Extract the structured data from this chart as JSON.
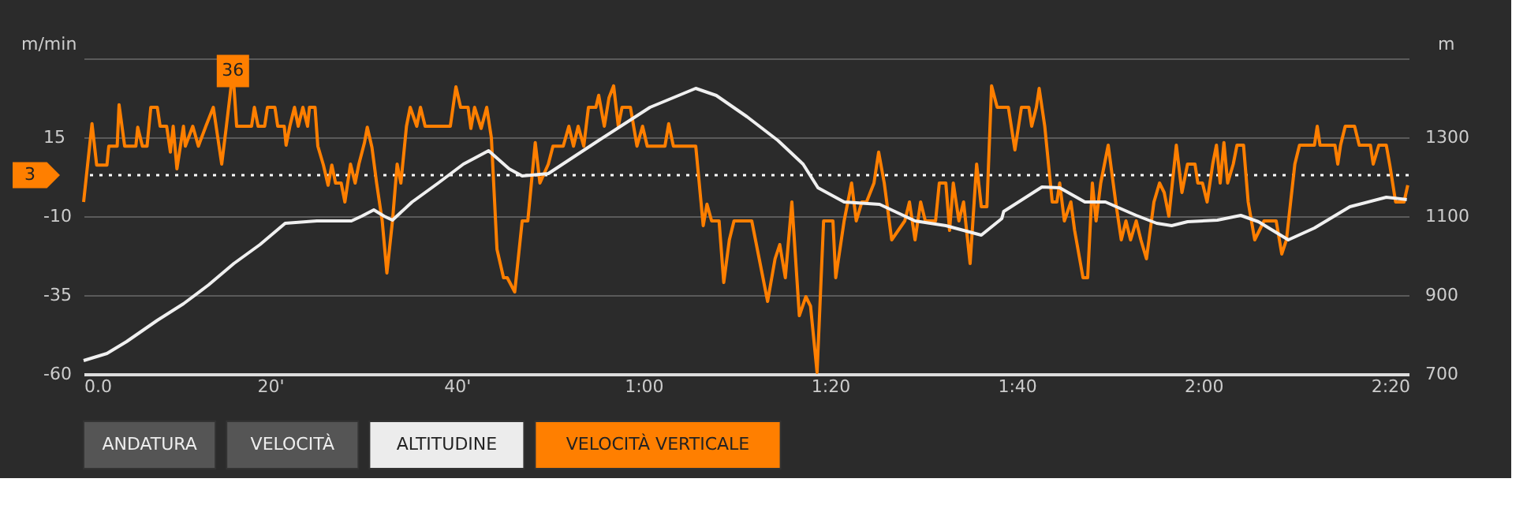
{
  "chart_data": {
    "type": "line",
    "ylabel": "m/min",
    "y2label": "m",
    "xlim": [
      0,
      142
    ],
    "xticks": [
      {
        "value": 0,
        "label": "0.0"
      },
      {
        "value": 20,
        "label": "20'"
      },
      {
        "value": 40,
        "label": "40'"
      },
      {
        "value": 60,
        "label": "1:00"
      },
      {
        "value": 80,
        "label": "1:20"
      },
      {
        "value": 100,
        "label": "1:40"
      },
      {
        "value": 120,
        "label": "2:00"
      },
      {
        "value": 140,
        "label": "2:20"
      }
    ],
    "ylim": [
      -60,
      40
    ],
    "yticks": [
      -60,
      -35,
      -10,
      15,
      {
        "value": 40,
        "label": null
      }
    ],
    "y2lim": [
      700,
      1500
    ],
    "y2ticks": [
      700,
      900,
      1100,
      1300
    ],
    "grid": "y",
    "series": [
      {
        "color": "#ff7f00",
        "x": [
          0,
          0.9,
          1.4,
          2.5,
          2.7,
          3.6,
          3.8,
          4.4,
          5.6,
          5.8,
          6.3,
          6.8,
          7.2,
          7.9,
          8.2,
          8.9,
          9.3,
          9.6,
          10.0,
          10.7,
          10.9,
          11.7,
          12.3,
          13.1,
          13.9,
          14.8,
          15.3,
          16.0,
          16.4,
          18.0,
          18.3,
          18.7,
          19.4,
          19.7,
          20.5,
          20.8,
          21.5,
          21.7,
          22.1,
          22.6,
          23.0,
          23.5,
          24.0,
          24.2,
          24.8,
          25.1,
          25.7,
          26.2,
          26.6,
          27.0,
          27.6,
          28.0,
          28.6,
          29.1,
          29.5,
          30.1,
          30.4,
          30.9,
          31.4,
          32.0,
          32.5,
          33.1,
          33.6,
          34.0,
          34.6,
          35.0,
          35.7,
          36.1,
          36.6,
          39.3,
          39.9,
          40.4,
          41.2,
          41.5,
          41.9,
          42.6,
          43.2,
          43.7,
          44.3,
          45.0,
          45.4,
          46.2,
          47.0,
          47.6,
          48.4,
          48.9,
          49.8,
          50.3,
          51.4,
          52.0,
          52.5,
          53.0,
          53.6,
          54.1,
          54.9,
          55.2,
          55.8,
          56.3,
          56.8,
          57.3,
          57.7,
          58.6,
          59.3,
          59.9,
          60.4,
          62.3,
          62.7,
          63.2,
          65.6,
          66.4,
          66.8,
          67.3,
          68.1,
          68.6,
          69.2,
          69.7,
          71.6,
          72.4,
          73.3,
          74.1,
          74.6,
          75.2,
          75.9,
          76.7,
          77.4,
          77.9,
          78.6,
          79.3,
          80.3,
          80.6,
          81.5,
          82.3,
          82.8,
          83.4,
          83.9,
          84.7,
          85.2,
          85.8,
          86.6,
          88.0,
          88.5,
          89.1,
          89.7,
          90.2,
          91.3,
          91.7,
          92.4,
          92.8,
          93.2,
          93.8,
          94.3,
          95.0,
          95.7,
          96.2,
          96.8,
          97.3,
          97.9,
          99.1,
          99.8,
          100.5,
          101.3,
          101.6,
          102.1,
          102.4,
          103.0,
          103.8,
          104.3,
          104.6,
          105.1,
          105.8,
          106.2,
          107.1,
          107.6,
          108.1,
          108.5,
          109.0,
          109.8,
          110.6,
          111.2,
          111.7,
          112.2,
          112.8,
          113.3,
          113.9,
          114.7,
          115.3,
          115.8,
          116.3,
          117.1,
          117.7,
          118.3,
          119.1,
          119.4,
          119.9,
          120.4,
          121.0,
          121.4,
          121.8,
          122.2,
          122.6,
          123.2,
          123.6,
          124.3,
          124.8,
          125.5,
          126.5,
          127.8,
          128.4,
          128.9,
          129.8,
          130.3,
          131.9,
          132.2,
          132.5,
          134.1,
          134.4,
          134.7,
          135.2,
          135.7,
          136.2,
          136.7,
          137.9,
          138.2,
          138.8,
          139.6,
          140.0,
          140.6,
          141.5,
          141.9
        ],
        "values": [
          -5.5,
          19.3,
          6.2,
          6.2,
          12.2,
          12.2,
          25.3,
          12.2,
          12.2,
          18.2,
          12.2,
          12.2,
          24.5,
          24.5,
          18.5,
          18.5,
          10.3,
          18.5,
          5.0,
          18.5,
          12.2,
          18.5,
          12.2,
          18.5,
          24.5,
          6.5,
          18.5,
          36,
          18.5,
          18.5,
          24.5,
          18.5,
          18.5,
          24.5,
          24.5,
          18.5,
          18.5,
          12.5,
          18.5,
          24.5,
          18.5,
          24.5,
          18.5,
          24.5,
          24.5,
          12.2,
          6.2,
          -0.2,
          6.2,
          0.5,
          0.5,
          -5.5,
          6.5,
          0.5,
          6.5,
          13.3,
          18.2,
          11.8,
          0.5,
          -11.5,
          -28,
          -11.5,
          6.5,
          0.5,
          18.5,
          24.5,
          18.5,
          24.5,
          18.5,
          18.5,
          31,
          24.5,
          24.5,
          17.8,
          24.5,
          17.8,
          24.5,
          14.8,
          -20.5,
          -29.5,
          -29.5,
          -34,
          -11.5,
          -11.5,
          13.3,
          0.5,
          6.5,
          12.2,
          12.2,
          18.5,
          12.2,
          18.5,
          12.2,
          24.5,
          24.5,
          28.3,
          18.5,
          27.5,
          31.3,
          18.5,
          24.5,
          24.5,
          12.2,
          18.5,
          12.2,
          12.2,
          19.3,
          12.2,
          12.2,
          -13,
          -6.2,
          -11.5,
          -11.5,
          -31,
          -17.5,
          -11.5,
          -11.5,
          -23.5,
          -37,
          -23.5,
          -19,
          -29.5,
          -5.5,
          -41.5,
          -35.5,
          -38.5,
          -59.5,
          -11.5,
          -11.5,
          -29.5,
          -11.5,
          0.5,
          -11.5,
          -5.5,
          -5.5,
          0.5,
          10.3,
          0.5,
          -17.5,
          -11.5,
          -5.5,
          -17.5,
          -5.5,
          -11.5,
          -11.5,
          0.5,
          0.5,
          -14.5,
          0.5,
          -11.5,
          -5.5,
          -25,
          6.5,
          -7,
          -7,
          31.3,
          24.5,
          24.5,
          11,
          24.5,
          24.5,
          18.5,
          24.5,
          30.5,
          18.5,
          -5.5,
          -5.5,
          0.5,
          -11.5,
          -5.5,
          -14.5,
          -29.5,
          -29.5,
          0.5,
          -11.5,
          0.5,
          12.5,
          -5.5,
          -17.5,
          -11.5,
          -17.5,
          -11.5,
          -17.5,
          -23.5,
          -5.5,
          0.5,
          -2.5,
          -10,
          12.5,
          -2.5,
          6.5,
          6.5,
          0.5,
          0.5,
          -5.5,
          6.5,
          12.5,
          0.5,
          13.3,
          0.5,
          6.5,
          12.5,
          12.5,
          -5.5,
          -17.5,
          -11.5,
          -11.5,
          -22,
          -17.5,
          6.5,
          12.5,
          12.5,
          18.5,
          12.5,
          12.5,
          6.5,
          12.5,
          18.5,
          18.5,
          18.5,
          12.5,
          12.5,
          6.5,
          12.5,
          12.5,
          5.8,
          -5.5,
          -5.5,
          -0.2
        ]
      },
      {
        "color": "#f0f0f0",
        "axis": "y2",
        "x": [
          0,
          2.5,
          4.6,
          7.9,
          10.7,
          13.4,
          16.1,
          18.9,
          21.6,
          25.0,
          26.5,
          28.7,
          29.8,
          31.1,
          32.2,
          33.1,
          35.2,
          38.0,
          40.7,
          43.4,
          45.6,
          47.0,
          49.8,
          55.2,
          60.7,
          65.6,
          67.8,
          71.1,
          74.4,
          77.1,
          78.7,
          81.5,
          85.3,
          89.1,
          92.4,
          96.2,
          98.4,
          98.6,
          102.7,
          104.6,
          107.3,
          109.5,
          112.8,
          115.0,
          116.6,
          118.3,
          121.5,
          124.0,
          125.9,
          129.1,
          131.9,
          135.7,
          139.6,
          141.8
        ],
        "values": [
          734,
          752,
          782,
          836,
          878,
          926,
          980,
          1028,
          1082,
          1088,
          1088,
          1088,
          1100,
          1116,
          1100,
          1090,
          1136,
          1184,
          1232,
          1266,
          1220,
          1202,
          1208,
          1292,
          1376,
          1424,
          1406,
          1352,
          1292,
          1232,
          1172,
          1136,
          1130,
          1088,
          1076,
          1052,
          1094,
          1112,
          1174,
          1172,
          1136,
          1136,
          1102,
          1082,
          1076,
          1086,
          1090,
          1102,
          1086,
          1040,
          1070,
          1124,
          1148,
          1142
        ]
      }
    ],
    "ref_lines": [
      {
        "axis": "y",
        "value": 3,
        "label": "3",
        "color": "#ffffff",
        "line_style": "dotted"
      }
    ],
    "annotations": [
      {
        "text": "36",
        "x": 16,
        "y": 36
      },
      "ANDATURA",
      "VELOCITÀ",
      "ALTITUDINE",
      "VELOCITÀ VERTICALE"
    ]
  }
}
